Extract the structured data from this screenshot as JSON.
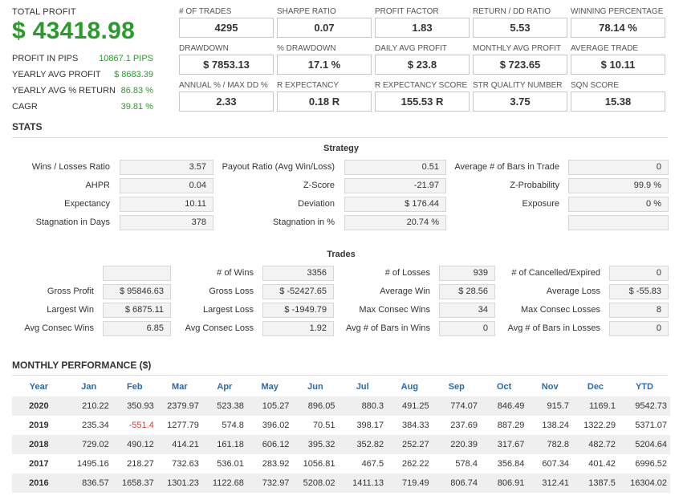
{
  "total_profit": {
    "label": "TOTAL PROFIT",
    "value": "$ 43418.98"
  },
  "profit_summary": [
    {
      "label": "PROFIT IN PIPS",
      "value": "10867.1 PIPS"
    },
    {
      "label": "YEARLY AVG PROFIT",
      "value": "$ 8683.39"
    },
    {
      "label": "YEARLY AVG % RETURN",
      "value": "86.83 %"
    },
    {
      "label": "CAGR",
      "value": "39.81 %"
    }
  ],
  "kpis": [
    {
      "label": "# OF TRADES",
      "value": "4295"
    },
    {
      "label": "SHARPE RATIO",
      "value": "0.07"
    },
    {
      "label": "PROFIT FACTOR",
      "value": "1.83"
    },
    {
      "label": "RETURN / DD RATIO",
      "value": "5.53"
    },
    {
      "label": "WINNING PERCENTAGE",
      "value": "78.14 %"
    },
    {
      "label": "DRAWDOWN",
      "value": "$ 7853.13"
    },
    {
      "label": "% DRAWDOWN",
      "value": "17.1 %"
    },
    {
      "label": "DAILY AVG PROFIT",
      "value": "$ 23.8"
    },
    {
      "label": "MONTHLY AVG PROFIT",
      "value": "$ 723.65"
    },
    {
      "label": "AVERAGE TRADE",
      "value": "$ 10.11"
    },
    {
      "label": "ANNUAL % / MAX DD %",
      "value": "2.33"
    },
    {
      "label": "R EXPECTANCY",
      "value": "0.18 R"
    },
    {
      "label": "R EXPECTANCY SCORE",
      "value": "155.53 R"
    },
    {
      "label": "STR QUALITY NUMBER",
      "value": "3.75"
    },
    {
      "label": "SQN SCORE",
      "value": "15.38"
    }
  ],
  "stats_title": "STATS",
  "strategy": {
    "title": "Strategy",
    "rows": [
      [
        {
          "label": "Wins / Losses Ratio",
          "value": "3.57"
        },
        {
          "label": "Payout Ratio (Avg Win/Loss)",
          "value": "0.51"
        },
        {
          "label": "Average # of Bars in Trade",
          "value": "0"
        }
      ],
      [
        {
          "label": "AHPR",
          "value": "0.04"
        },
        {
          "label": "Z-Score",
          "value": "-21.97"
        },
        {
          "label": "Z-Probability",
          "value": "99.9 %"
        }
      ],
      [
        {
          "label": "Expectancy",
          "value": "10.11"
        },
        {
          "label": "Deviation",
          "value": "$ 176.44"
        },
        {
          "label": "Exposure",
          "value": "0 %"
        }
      ],
      [
        {
          "label": "Stagnation in Days",
          "value": "378"
        },
        {
          "label": "Stagnation in %",
          "value": "20.74 %"
        },
        {
          "label": "",
          "value": ""
        }
      ]
    ]
  },
  "trades": {
    "title": "Trades",
    "rows": [
      [
        {
          "label": "",
          "value": ""
        },
        {
          "label": "# of Wins",
          "value": "3356"
        },
        {
          "label": "# of Losses",
          "value": "939"
        },
        {
          "label": "# of Cancelled/Expired",
          "value": "0"
        }
      ],
      [
        {
          "label": "Gross Profit",
          "value": "$ 95846.63"
        },
        {
          "label": "Gross Loss",
          "value": "$ -52427.65"
        },
        {
          "label": "Average Win",
          "value": "$ 28.56"
        },
        {
          "label": "Average Loss",
          "value": "$ -55.83"
        }
      ],
      [
        {
          "label": "Largest Win",
          "value": "$ 6875.11"
        },
        {
          "label": "Largest Loss",
          "value": "$ -1949.79"
        },
        {
          "label": "Max Consec Wins",
          "value": "34"
        },
        {
          "label": "Max Consec Losses",
          "value": "8"
        }
      ],
      [
        {
          "label": "Avg Consec Wins",
          "value": "6.85"
        },
        {
          "label": "Avg Consec Loss",
          "value": "1.92"
        },
        {
          "label": "Avg # of Bars in Wins",
          "value": "0"
        },
        {
          "label": "Avg # of Bars in Losses",
          "value": "0"
        }
      ]
    ]
  },
  "monthly": {
    "title": "MONTHLY PERFORMANCE ($)",
    "headers": [
      "Year",
      "Jan",
      "Feb",
      "Mar",
      "Apr",
      "May",
      "Jun",
      "Jul",
      "Aug",
      "Sep",
      "Oct",
      "Nov",
      "Dec",
      "YTD"
    ],
    "rows": [
      [
        "2020",
        "210.22",
        "350.93",
        "2379.97",
        "523.38",
        "105.27",
        "896.05",
        "880.3",
        "491.25",
        "774.07",
        "846.49",
        "915.7",
        "1169.1",
        "9542.73"
      ],
      [
        "2019",
        "235.34",
        "-551.4",
        "1277.79",
        "574.8",
        "396.02",
        "70.51",
        "398.17",
        "384.33",
        "237.69",
        "887.29",
        "138.24",
        "1322.29",
        "5371.07"
      ],
      [
        "2018",
        "729.02",
        "490.12",
        "414.21",
        "161.18",
        "606.12",
        "395.32",
        "352.82",
        "252.27",
        "220.39",
        "317.67",
        "782.8",
        "482.72",
        "5204.64"
      ],
      [
        "2017",
        "1495.16",
        "218.27",
        "732.63",
        "536.01",
        "283.92",
        "1056.81",
        "467.5",
        "262.22",
        "578.4",
        "356.84",
        "607.34",
        "401.42",
        "6996.52"
      ],
      [
        "2016",
        "836.57",
        "1658.37",
        "1301.23",
        "1122.68",
        "732.97",
        "5208.02",
        "1411.13",
        "719.49",
        "806.74",
        "806.91",
        "312.41",
        "1387.5",
        "16304.02"
      ]
    ]
  },
  "colors": {
    "positive": "#2a9a2a",
    "negative": "#d23b3b",
    "header_blue": "#2b6aa8"
  }
}
